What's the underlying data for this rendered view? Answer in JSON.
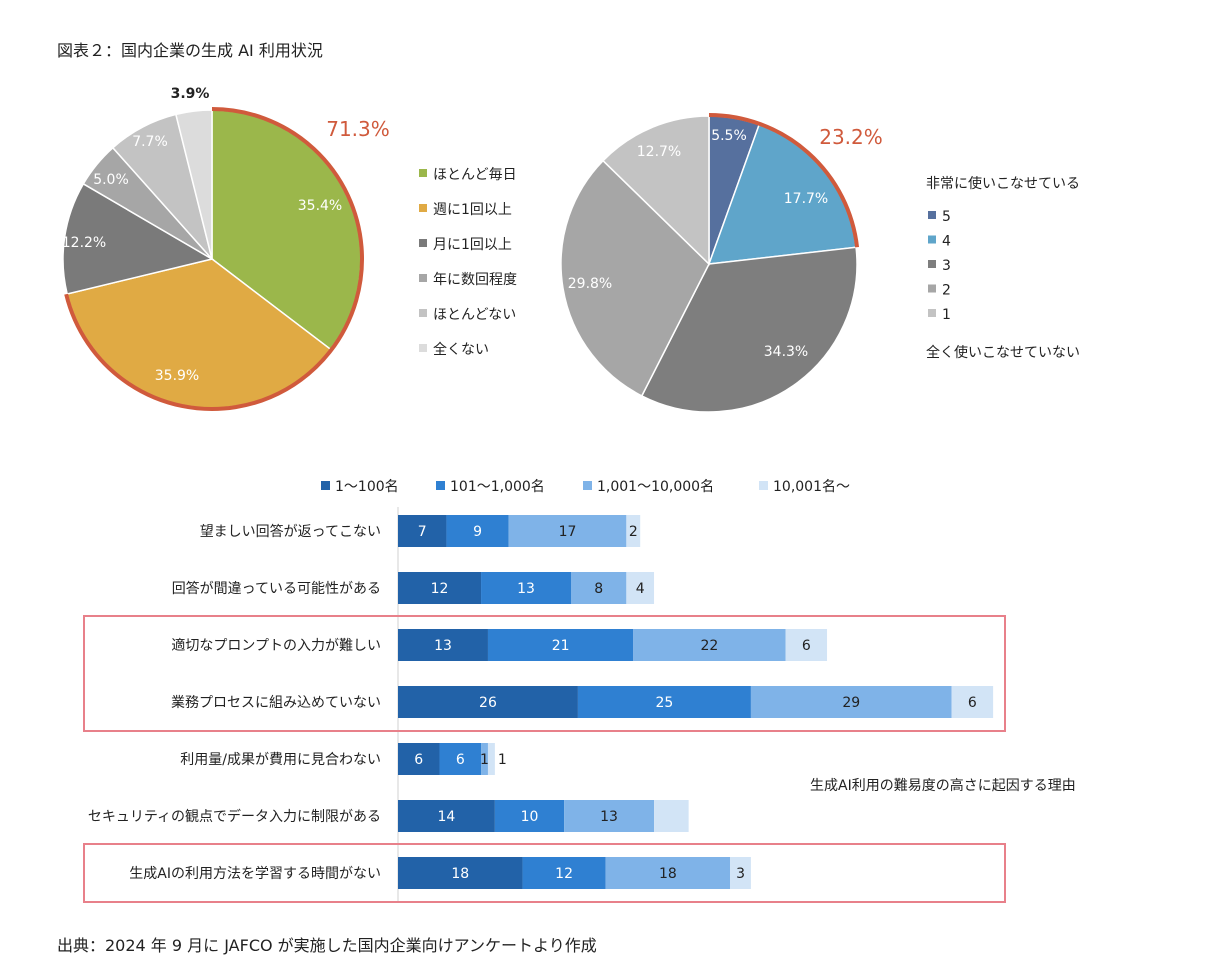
{
  "figure_title": "図表２：国内企業の生成 AI 利用状況",
  "source_note": "出典：2024 年 9 月に JAFCO が実施した国内企業向けアンケートより作成",
  "colors": {
    "highlight": "#D05A3C",
    "frame": "#E8808A"
  },
  "chart_data": [
    {
      "type": "pie",
      "categories": [
        "ほとんど毎日",
        "週に1回以上",
        "月に1回以上",
        "年に数回程度",
        "ほとんどない",
        "全くない"
      ],
      "values": [
        35.4,
        35.9,
        12.2,
        5.0,
        7.7,
        3.9
      ],
      "labels": [
        "35.4%",
        "35.9%",
        "12.2%",
        "5.0%",
        "7.7%",
        "3.9%"
      ],
      "colors": [
        "#9BB74B",
        "#E0AA44",
        "#7A7A7A",
        "#A6A6A6",
        "#C3C3C3",
        "#DCDCDC"
      ],
      "highlight_label": "71.3%",
      "legend_placement": "right"
    },
    {
      "type": "pie",
      "categories": [
        "5",
        "4",
        "3",
        "2",
        "1"
      ],
      "values": [
        5.5,
        17.7,
        34.3,
        29.8,
        12.7
      ],
      "labels": [
        "5.5%",
        "17.7%",
        "34.3%",
        "29.8%",
        "12.7%"
      ],
      "colors": [
        "#56709E",
        "#5FA5CA",
        "#7E7E7E",
        "#A6A6A6",
        "#C3C3C3"
      ],
      "highlight_label": "23.2%",
      "legend_top": "非常に使いこなせている",
      "legend_bottom": "全く使いこなせていない",
      "legend_placement": "right"
    },
    {
      "type": "bar",
      "orientation": "horizontal",
      "stacked": true,
      "categories": [
        "望ましい回答が返ってこない",
        "回答が間違っている可能性がある",
        "適切なプロンプトの入力が難しい",
        "業務プロセスに組み込めていない",
        "利用量/成果が費用に見合わない",
        "セキュリティの観点でデータ入力に制限がある",
        "生成AIの利用方法を学習する時間がない"
      ],
      "series": [
        {
          "name": "1～100名",
          "color": "#2262A8",
          "values": [
            7,
            12,
            13,
            26,
            6,
            14,
            18
          ]
        },
        {
          "name": "101～1,000名",
          "color": "#2F80D2",
          "values": [
            9,
            13,
            21,
            25,
            6,
            10,
            12
          ]
        },
        {
          "name": "1,001～10,000名",
          "color": "#7FB3E8",
          "values": [
            17,
            8,
            22,
            29,
            1,
            13,
            18
          ]
        },
        {
          "name": "10,001名～",
          "color": "#D2E4F6",
          "values": [
            2,
            4,
            6,
            6,
            1,
            5,
            3
          ]
        }
      ],
      "value_labels": [
        [
          "7",
          "9",
          "17",
          "2"
        ],
        [
          "12",
          "13",
          "8",
          "4"
        ],
        [
          "13",
          "21",
          "22",
          "6"
        ],
        [
          "26",
          "25",
          "29",
          "6"
        ],
        [
          "6",
          "6",
          "1",
          "1"
        ],
        [
          "14",
          "10",
          "13",
          ""
        ],
        [
          "18",
          "12",
          "18",
          "3"
        ]
      ],
      "annotation": "生成AI利用の難易度の高さに起因する理由",
      "highlighted_groups": [
        [
          2,
          3
        ],
        [
          6
        ]
      ],
      "legend_placement": "top"
    }
  ]
}
